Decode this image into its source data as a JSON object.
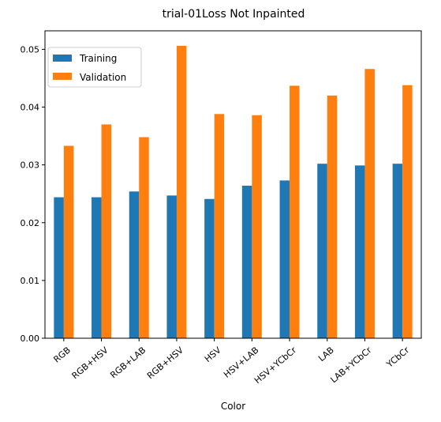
{
  "chart_data": {
    "type": "bar",
    "title": "trial-01Loss Not Inpainted",
    "xlabel": "Color",
    "ylabel": "",
    "categories": [
      "RGB",
      "RGB+HSV",
      "RGB+LAB",
      "RGB+HSV",
      "HSV",
      "HSV+LAB",
      "HSV+YCbCr",
      "LAB",
      "LAB+YCbCr",
      "YCbCr"
    ],
    "series": [
      {
        "name": "Training",
        "color": "#1f77b4",
        "values": [
          0.0244,
          0.0244,
          0.0254,
          0.0247,
          0.0241,
          0.0264,
          0.0273,
          0.0302,
          0.0299,
          0.0302
        ]
      },
      {
        "name": "Validation",
        "color": "#ff7f0e",
        "values": [
          0.0333,
          0.037,
          0.0348,
          0.0506,
          0.0388,
          0.0386,
          0.0437,
          0.042,
          0.0466,
          0.0438
        ]
      }
    ],
    "ylim": [
      0,
      0.0532
    ],
    "yticks": [
      "0.00",
      "0.01",
      "0.02",
      "0.03",
      "0.04",
      "0.05"
    ],
    "legend_position": "upper-left",
    "grid": false
  }
}
